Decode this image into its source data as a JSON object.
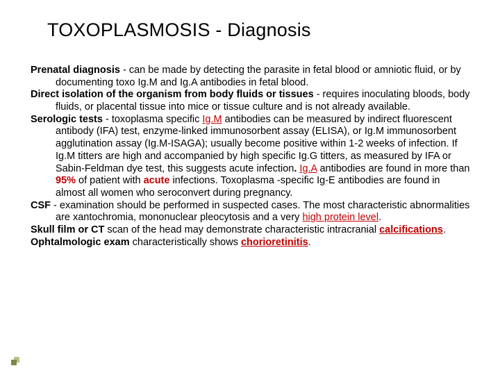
{
  "title": "TOXOPLASMOSIS - Diagnosis",
  "items": [
    {
      "lead": "Prenatal diagnosis",
      "rest": " - can be made by detecting the parasite in fetal blood or amniotic fluid, or by documenting toxo Ig.M and Ig.A antibodies in fetal blood."
    },
    {
      "lead": "Direct isolation of the organism from body fluids or tissues",
      "rest": " - requires inoculating bloods, body fluids, or placental tissue into mice or tissue culture and is not already available."
    },
    {
      "lead": "Serologic tests",
      "parts": {
        "p1": " - toxoplasma specific ",
        "igm": "Ig.M",
        "p2": " antibodies can be measured by indirect fluorescent antibody (IFA) test, enzyme-linked immunosorbent assay (ELISA), or Ig.M immunosorbent agglutination assay (Ig.M-ISAGA); usually become positive within 1-2 weeks of infection. If Ig.M titters are high and accompanied by high specific Ig.G titters, as measured by IFA or Sabin-Feldman dye test, this suggests acute infection",
        "dot1": ". ",
        "iga": "Ig.A",
        "p3": " antibodies are found in more than ",
        "pct": "95%",
        "p4": " of patient with ",
        "acute": "acute",
        "p5": " infections. Toxoplasma -specific Ig-E antibodies are found in almost all women who seroconvert during pregnancy."
      }
    },
    {
      "lead": "CSF",
      "parts": {
        "p1": " - examination should be performed in suspected cases. The most characteristic abnormalities are xantochromia, mononuclear pleocytosis and a very ",
        "hp": "high protein level",
        "dot": "."
      }
    },
    {
      "lead": "Skull film or CT",
      "parts": {
        "p1": " scan of the head may demonstrate characteristic intracranial ",
        "cal": "calcifications",
        "dot": "."
      }
    },
    {
      "lead": "Ophtalmologic exam",
      "parts": {
        "p1": " characteristically shows ",
        "cr": "chorioretinitis",
        "dot": "."
      }
    }
  ]
}
